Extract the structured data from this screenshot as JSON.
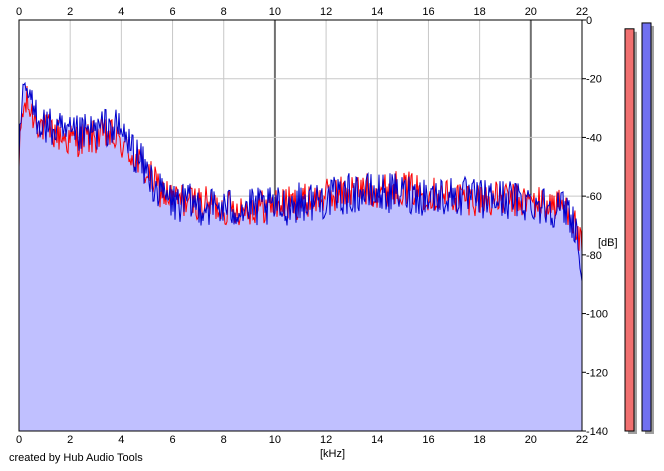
{
  "chart_data": {
    "type": "area",
    "title": "",
    "xlabel": "[kHz]",
    "ylabel": "[dB]",
    "xlim": [
      0,
      22
    ],
    "ylim": [
      -140,
      0
    ],
    "x_ticks": [
      0,
      2,
      4,
      6,
      8,
      10,
      12,
      14,
      16,
      18,
      20,
      22
    ],
    "y_ticks": [
      0,
      -20,
      -40,
      -60,
      -80,
      -100,
      -120,
      -140
    ],
    "y_tick_labels": [
      "0",
      "-20",
      "-40",
      "-60",
      "-80",
      "-100",
      "-120",
      "-140"
    ],
    "grid": true,
    "fill_color": "#c0c0ff",
    "series": [
      {
        "color": "#ff0000",
        "x": [
          0,
          0.1,
          0.3,
          0.5,
          1,
          2,
          3,
          3.5,
          4,
          4.5,
          5,
          5.5,
          6,
          7,
          8,
          9,
          10,
          11,
          12,
          13,
          14,
          15,
          16,
          17,
          18,
          19,
          20,
          21,
          21.5,
          21.8,
          22
        ],
        "y": [
          -50,
          -33,
          -28,
          -32,
          -37,
          -41,
          -40,
          -39,
          -42,
          -47,
          -52,
          -58,
          -61,
          -62,
          -64,
          -64,
          -63,
          -62,
          -60,
          -58,
          -58,
          -57,
          -59,
          -60,
          -61,
          -61,
          -62,
          -63,
          -64,
          -72,
          -79
        ]
      },
      {
        "color": "#0000cc",
        "x": [
          0,
          0.1,
          0.3,
          0.5,
          1,
          2,
          3,
          3.5,
          4,
          4.5,
          5,
          5.5,
          6,
          7,
          8,
          9,
          10,
          11,
          12,
          13,
          14,
          15,
          16,
          17,
          18,
          19,
          20,
          21,
          21.5,
          21.8,
          22
        ],
        "y": [
          -48,
          -30,
          -23,
          -30,
          -36,
          -40,
          -38,
          -36,
          -38,
          -45,
          -52,
          -59,
          -62,
          -63,
          -64,
          -64,
          -64,
          -62,
          -61,
          -59,
          -59,
          -59,
          -60,
          -60,
          -61,
          -61,
          -62,
          -64,
          -65,
          -72,
          -89
        ]
      }
    ],
    "level_meters": [
      {
        "color": "#f07070",
        "level_db": -3
      },
      {
        "color": "#7070f0",
        "level_db": -1
      }
    ]
  },
  "footer": {
    "text": "created by Hub Audio Tools"
  }
}
